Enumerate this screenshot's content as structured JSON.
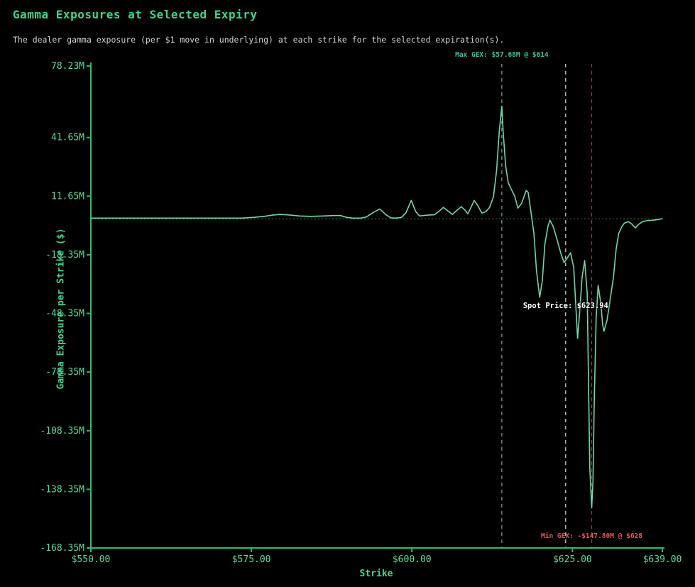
{
  "header": {
    "title": "Gamma Exposures at Selected Expiry",
    "subtitle": "The dealer gamma exposure (per $1 move in underlying) at each strike for the selected expiration(s)."
  },
  "colors": {
    "background": "#000000",
    "title": "#3dd68c",
    "subtitle": "#d6d6d6",
    "axis_spine": "#2bbd70",
    "tick_label": "#5fdc9e",
    "curve": "#70d8a6",
    "zero_line": "#2b8a62",
    "max_line": "#79a894",
    "spot_line": "#d9d9d9",
    "min_line": "#8c4448",
    "max_text": "#35c2a0",
    "spot_text": "#ffffff",
    "min_text": "#df5858"
  },
  "chart_data": {
    "type": "line",
    "title": "Gamma Exposures at Selected Expiry",
    "xlabel": "Strike",
    "ylabel": "Gamma Exposure per Strike ($)",
    "xlim": [
      550,
      639
    ],
    "ylim": [
      -168.35,
      78.23
    ],
    "grid": false,
    "zero_line": true,
    "x_ticks": [
      {
        "value": 550,
        "label": "$550.00"
      },
      {
        "value": 575,
        "label": "$575.00"
      },
      {
        "value": 600,
        "label": "$600.00"
      },
      {
        "value": 625,
        "label": "$625.00"
      },
      {
        "value": 639,
        "label": "$639.00"
      }
    ],
    "y_ticks": [
      {
        "value": 78.23,
        "label": "78.23M"
      },
      {
        "value": 41.65,
        "label": "41.65M"
      },
      {
        "value": 11.65,
        "label": "11.65M"
      },
      {
        "value": -18.35,
        "label": "-18.35M"
      },
      {
        "value": -48.35,
        "label": "-48.35M"
      },
      {
        "value": -78.35,
        "label": "-78.35M"
      },
      {
        "value": -108.35,
        "label": "-108.35M"
      },
      {
        "value": -138.35,
        "label": "-138.35M"
      },
      {
        "value": -168.35,
        "label": "-168.35M"
      }
    ],
    "vlines": [
      {
        "name": "max-gex-line",
        "strike": 614,
        "color_key": "max_line"
      },
      {
        "name": "spot-price-line",
        "strike": 623.94,
        "color_key": "spot_line"
      },
      {
        "name": "min-gex-line",
        "strike": 628,
        "color_key": "min_line"
      }
    ],
    "annotations": [
      {
        "name": "max-gex",
        "text": "Max GEX: $57.68M @ $614",
        "strike": 614,
        "color_key": "max_text"
      },
      {
        "name": "spot-price",
        "text": "Spot Price: $623.94",
        "strike": 623.94,
        "color_key": "spot_text"
      },
      {
        "name": "min-gex",
        "text": "Min GEX: -$147.80M @ $628",
        "strike": 628,
        "color_key": "min_text"
      }
    ],
    "max_point": {
      "strike": 614,
      "gex_millions": 57.68
    },
    "min_point": {
      "strike": 628,
      "gex_millions": -147.8
    },
    "spot_price": 623.94,
    "series": [
      {
        "name": "dealer-gamma-exposure",
        "units": "millions_usd",
        "points": [
          [
            550.0,
            0.4
          ],
          [
            558.0,
            0.4
          ],
          [
            566.8,
            0.4
          ],
          [
            573.4,
            0.4
          ],
          [
            575.4,
            0.8
          ],
          [
            577.0,
            1.3
          ],
          [
            578.4,
            2.0
          ],
          [
            579.5,
            2.3
          ],
          [
            581.0,
            2.0
          ],
          [
            582.5,
            1.5
          ],
          [
            584.3,
            1.3
          ],
          [
            586.2,
            1.5
          ],
          [
            587.8,
            1.7
          ],
          [
            588.9,
            1.7
          ],
          [
            589.8,
            0.8
          ],
          [
            590.8,
            0.4
          ],
          [
            592.0,
            0.4
          ],
          [
            592.9,
            1.0
          ],
          [
            594.0,
            3.3
          ],
          [
            595.0,
            5.1
          ],
          [
            595.9,
            2.3
          ],
          [
            596.7,
            0.6
          ],
          [
            597.5,
            0.4
          ],
          [
            598.4,
            0.8
          ],
          [
            599.1,
            3.3
          ],
          [
            599.9,
            9.5
          ],
          [
            600.6,
            3.7
          ],
          [
            601.2,
            1.5
          ],
          [
            602.2,
            1.9
          ],
          [
            603.5,
            2.1
          ],
          [
            604.3,
            4.1
          ],
          [
            604.9,
            5.9
          ],
          [
            605.6,
            4.1
          ],
          [
            606.3,
            2.3
          ],
          [
            607.0,
            4.4
          ],
          [
            607.7,
            6.2
          ],
          [
            608.3,
            4.4
          ],
          [
            608.7,
            2.6
          ],
          [
            609.3,
            6.6
          ],
          [
            609.7,
            9.5
          ],
          [
            610.3,
            6.6
          ],
          [
            610.9,
            3.0
          ],
          [
            611.5,
            3.7
          ],
          [
            612.1,
            5.9
          ],
          [
            612.7,
            11.3
          ],
          [
            613.2,
            25.1
          ],
          [
            613.6,
            45.0
          ],
          [
            614.0,
            57.68
          ],
          [
            614.2,
            45.0
          ],
          [
            614.6,
            26.9
          ],
          [
            615.0,
            18.6
          ],
          [
            615.4,
            15.7
          ],
          [
            616.0,
            11.7
          ],
          [
            616.5,
            5.5
          ],
          [
            617.1,
            8.0
          ],
          [
            617.8,
            14.6
          ],
          [
            618.1,
            13.5
          ],
          [
            618.5,
            4.4
          ],
          [
            619.0,
            -7.5
          ],
          [
            619.4,
            -26.4
          ],
          [
            619.9,
            -40.1
          ],
          [
            620.3,
            -31.8
          ],
          [
            620.7,
            -13.0
          ],
          [
            621.2,
            -3.6
          ],
          [
            621.5,
            -0.7
          ],
          [
            622.0,
            -3.9
          ],
          [
            622.5,
            -9.4
          ],
          [
            623.2,
            -17.7
          ],
          [
            623.7,
            -22.4
          ],
          [
            624.3,
            -19.5
          ],
          [
            624.7,
            -17.3
          ],
          [
            625.2,
            -24.9
          ],
          [
            625.5,
            -43.0
          ],
          [
            625.8,
            -61.1
          ],
          [
            626.2,
            -44.5
          ],
          [
            626.5,
            -30.0
          ],
          [
            626.9,
            -21.3
          ],
          [
            627.3,
            -38.3
          ],
          [
            627.5,
            -83.6
          ],
          [
            627.7,
            -127.1
          ],
          [
            628.0,
            -147.8
          ],
          [
            628.2,
            -134.3
          ],
          [
            628.4,
            -92.7
          ],
          [
            628.7,
            -50.3
          ],
          [
            629.0,
            -34.0
          ],
          [
            629.4,
            -43.0
          ],
          [
            629.7,
            -53.9
          ],
          [
            629.9,
            -57.5
          ],
          [
            630.4,
            -51.7
          ],
          [
            630.8,
            -43.0
          ],
          [
            631.4,
            -29.3
          ],
          [
            631.8,
            -15.5
          ],
          [
            632.2,
            -7.5
          ],
          [
            632.7,
            -3.9
          ],
          [
            633.1,
            -2.1
          ],
          [
            633.7,
            -1.4
          ],
          [
            634.2,
            -2.5
          ],
          [
            634.8,
            -4.6
          ],
          [
            635.3,
            -2.8
          ],
          [
            635.9,
            -1.4
          ],
          [
            636.7,
            -0.8
          ],
          [
            637.5,
            -0.7
          ],
          [
            638.4,
            -0.3
          ],
          [
            639.0,
            0.1
          ]
        ]
      }
    ]
  }
}
